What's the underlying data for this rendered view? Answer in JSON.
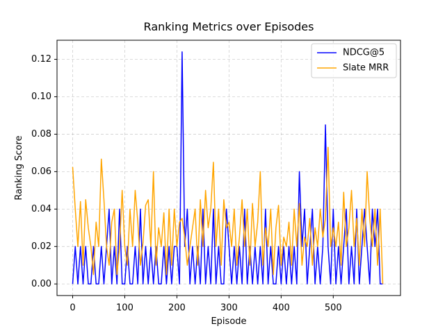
{
  "chart_data": {
    "type": "line",
    "title": "Ranking Metrics over Episodes",
    "xlabel": "Episode",
    "ylabel": "Ranking Score",
    "x": [
      0,
      5,
      10,
      15,
      20,
      25,
      30,
      35,
      40,
      45,
      50,
      55,
      60,
      65,
      70,
      75,
      80,
      85,
      90,
      95,
      100,
      105,
      110,
      115,
      120,
      125,
      130,
      135,
      140,
      145,
      150,
      155,
      160,
      165,
      170,
      175,
      180,
      185,
      190,
      195,
      200,
      205,
      210,
      215,
      220,
      225,
      230,
      235,
      240,
      245,
      250,
      255,
      260,
      265,
      270,
      275,
      280,
      285,
      290,
      295,
      300,
      305,
      310,
      315,
      320,
      325,
      330,
      335,
      340,
      345,
      350,
      355,
      360,
      365,
      370,
      375,
      380,
      385,
      390,
      395,
      400,
      405,
      410,
      415,
      420,
      425,
      430,
      435,
      440,
      445,
      450,
      455,
      460,
      465,
      470,
      475,
      480,
      485,
      490,
      495,
      500,
      505,
      510,
      515,
      520,
      525,
      530,
      535,
      540,
      545,
      550,
      555,
      560,
      565,
      570,
      575,
      580,
      585,
      590,
      595
    ],
    "series": [
      {
        "name": "NDCG@5",
        "color": "#0000ff",
        "values": [
          0,
          0.02,
          0,
          0.02,
          0,
          0.02,
          0,
          0,
          0.02,
          0,
          0,
          0.02,
          0,
          0.02,
          0.04,
          0,
          0.02,
          0,
          0.04,
          0,
          0,
          0.02,
          0,
          0,
          0.02,
          0,
          0.04,
          0,
          0.02,
          0,
          0.02,
          0,
          0.02,
          0,
          0,
          0.02,
          0,
          0.02,
          0,
          0.02,
          0.02,
          0,
          0.124,
          0.02,
          0.04,
          0,
          0.02,
          0,
          0.02,
          0,
          0.04,
          0,
          0.02,
          0,
          0.04,
          0,
          0.02,
          0,
          0,
          0.04,
          0.02,
          0,
          0.02,
          0,
          0.02,
          0,
          0.04,
          0,
          0.02,
          0,
          0.02,
          0,
          0.02,
          0,
          0.04,
          0,
          0.02,
          0,
          0,
          0.02,
          0,
          0.02,
          0,
          0.02,
          0,
          0.02,
          0,
          0.06,
          0.02,
          0.04,
          0,
          0.02,
          0.04,
          0,
          0.02,
          0,
          0.02,
          0.085,
          0.02,
          0,
          0.04,
          0,
          0.02,
          0,
          0.02,
          0.04,
          0,
          0.02,
          0,
          0.04,
          0,
          0.02,
          0.04,
          0.02,
          0,
          0.04,
          0.02,
          0.04,
          0,
          0
        ]
      },
      {
        "name": "Slate MRR",
        "color": "#ffa500",
        "values": [
          0.0625,
          0.04,
          0.02,
          0.044,
          0.01,
          0.045,
          0.03,
          0.02,
          0.005,
          0.033,
          0.02,
          0.0667,
          0.045,
          0.02,
          0.01,
          0.033,
          0.04,
          0.005,
          0.02,
          0.05,
          0.02,
          0.01,
          0.04,
          0.02,
          0.05,
          0.033,
          0.01,
          0.022,
          0.042,
          0.045,
          0.02,
          0.06,
          0.01,
          0.03,
          0.02,
          0.038,
          0.005,
          0.04,
          0.01,
          0.04,
          0.02,
          0.033,
          0.035,
          0.025,
          0.01,
          0.02,
          0.03,
          0.04,
          0.01,
          0.045,
          0.02,
          0.05,
          0.03,
          0.04,
          0.065,
          0.02,
          0.04,
          0.01,
          0.045,
          0.03,
          0.033,
          0.02,
          0.04,
          0.01,
          0.025,
          0.045,
          0.02,
          0.04,
          0.01,
          0.043,
          0.02,
          0.033,
          0.06,
          0.01,
          0.03,
          0.02,
          0.04,
          0.005,
          0.03,
          0.042,
          0.01,
          0.025,
          0.02,
          0.033,
          0.01,
          0.04,
          0.02,
          0.043,
          0.01,
          0.025,
          0.02,
          0.035,
          0.01,
          0.03,
          0.02,
          0.04,
          0.025,
          0.035,
          0.073,
          0.02,
          0.03,
          0.02,
          0.033,
          0.01,
          0.049,
          0.02,
          0.03,
          0.05,
          0.02,
          0.035,
          0.01,
          0.04,
          0.02,
          0.06,
          0.035,
          0.02,
          0.04,
          0.01,
          0.04,
          0
        ]
      }
    ],
    "xlim": [
      -30,
      629
    ],
    "ylim": [
      -0.0062,
      0.1302
    ],
    "xticks": [
      0,
      100,
      200,
      300,
      400,
      500
    ],
    "yticks": [
      {
        "value": 0,
        "label": "0.00"
      },
      {
        "value": 0.02,
        "label": "0.02"
      },
      {
        "value": 0.04,
        "label": "0.04"
      },
      {
        "value": 0.06,
        "label": "0.06"
      },
      {
        "value": 0.08,
        "label": "0.08"
      },
      {
        "value": 0.1,
        "label": "0.10"
      },
      {
        "value": 0.12,
        "label": "0.12"
      }
    ],
    "grid": true,
    "legend": "upper right"
  }
}
